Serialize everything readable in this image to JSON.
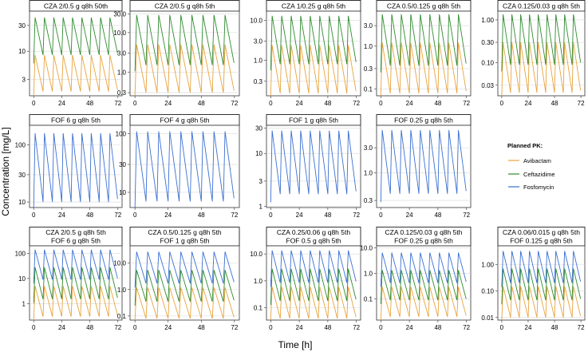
{
  "chart_data": {
    "type": "line",
    "xlabel": "Time [h]",
    "ylabel": "Concentration [mg/L]",
    "x_ticks": [
      0,
      24,
      48,
      72
    ],
    "xlim": [
      0,
      72
    ],
    "y_scale": "log10",
    "dosing_interval_h": 8,
    "colors": {
      "Avibactam": "#e8a33d",
      "Ceftazidime": "#2e8b2e",
      "Fosfomycin": "#3a6fd1"
    },
    "legend": {
      "title": "Planned PK:",
      "entries": [
        "Avibactam",
        "Ceftazidime",
        "Fosfomycin"
      ],
      "placement": "right"
    },
    "panels": [
      {
        "row": 0,
        "col": 0,
        "title": [
          "CZA 2/0.5 g q8h 50th"
        ],
        "ylim": [
          1.5,
          55
        ],
        "y_ticks": [
          3,
          10,
          30
        ],
        "y_tick_labels": [
          "3",
          "10",
          "30"
        ],
        "series": [
          {
            "name": "Avibactam",
            "peak": 8.5,
            "trough": 1.8
          },
          {
            "name": "Ceftazidime",
            "peak": 42,
            "trough": 8.5
          }
        ]
      },
      {
        "row": 0,
        "col": 1,
        "title": [
          "CZA 2/0.5 g q8h 5th"
        ],
        "ylim": [
          0.25,
          35
        ],
        "y_ticks": [
          0.3,
          1,
          3,
          10,
          30
        ],
        "y_tick_labels": [
          "0.3",
          "1.0",
          "3.0",
          "10.0",
          "30.0"
        ],
        "series": [
          {
            "name": "Avibactam",
            "peak": 5,
            "trough": 0.3
          },
          {
            "name": "Ceftazidime",
            "peak": 28,
            "trough": 1.5
          }
        ]
      },
      {
        "row": 0,
        "col": 2,
        "title": [
          "CZA 1/0.25 g q8h 5th"
        ],
        "ylim": [
          0.13,
          17
        ],
        "y_ticks": [
          0.3,
          1,
          3,
          10
        ],
        "y_tick_labels": [
          "0.3",
          "1.0",
          "3.0",
          "10.0"
        ],
        "series": [
          {
            "name": "Avibactam",
            "peak": 2.4,
            "trough": 0.15
          },
          {
            "name": "Ceftazidime",
            "peak": 13,
            "trough": 0.8
          }
        ]
      },
      {
        "row": 0,
        "col": 3,
        "title": [
          "CZA 0.5/0.125 g q8h 5th"
        ],
        "ylim": [
          0.07,
          6.5
        ],
        "y_ticks": [
          0.1,
          0.3,
          1,
          3
        ],
        "y_tick_labels": [
          "0.1",
          "0.3",
          "1.0",
          "3.0"
        ],
        "series": [
          {
            "name": "Avibactam",
            "peak": 1.2,
            "trough": 0.08
          },
          {
            "name": "Ceftazidime",
            "peak": 5.5,
            "trough": 0.35
          }
        ]
      },
      {
        "row": 0,
        "col": 4,
        "title": [
          "CZA 0.125/0.03 g q8h 5th"
        ],
        "ylim": [
          0.017,
          1.6
        ],
        "y_ticks": [
          0.03,
          0.1,
          0.3,
          1
        ],
        "y_tick_labels": [
          "0.03",
          "0.10",
          "0.30",
          "1.00"
        ],
        "series": [
          {
            "name": "Avibactam",
            "peak": 0.3,
            "trough": 0.02
          },
          {
            "name": "Ceftazidime",
            "peak": 1.35,
            "trough": 0.09
          }
        ]
      },
      {
        "row": 1,
        "col": 0,
        "title": [
          "FOF 6 g q8h 5th"
        ],
        "ylim": [
          8,
          220
        ],
        "y_ticks": [
          10,
          30,
          100
        ],
        "y_tick_labels": [
          "10",
          "30",
          "100"
        ],
        "series": [
          {
            "name": "Fosfomycin",
            "peak": 160,
            "trough": 10
          }
        ]
      },
      {
        "row": 1,
        "col": 1,
        "title": [
          "FOF 4 g q8h 5th"
        ],
        "ylim": [
          5.5,
          140
        ],
        "y_ticks": [
          10,
          30,
          100
        ],
        "y_tick_labels": [
          "10",
          "30",
          "100"
        ],
        "series": [
          {
            "name": "Fosfomycin",
            "peak": 110,
            "trough": 7
          }
        ]
      },
      {
        "row": 1,
        "col": 2,
        "title": [
          "FOF 1 g q8h 5th"
        ],
        "ylim": [
          0.95,
          34
        ],
        "y_ticks": [
          1,
          3,
          10,
          30
        ],
        "y_tick_labels": [
          "1",
          "3",
          "10",
          "30"
        ],
        "series": [
          {
            "name": "Fosfomycin",
            "peak": 27,
            "trough": 1.7
          }
        ]
      },
      {
        "row": 1,
        "col": 3,
        "title": [
          "FOF 0.25 g q8h 5th"
        ],
        "ylim": [
          0.22,
          8
        ],
        "y_ticks": [
          0.3,
          1,
          3
        ],
        "y_tick_labels": [
          "0.3",
          "1.0",
          "3.0"
        ],
        "series": [
          {
            "name": "Fosfomycin",
            "peak": 6.5,
            "trough": 0.4
          }
        ]
      },
      {
        "row": 2,
        "col": 0,
        "title": [
          "CZA 2/0.5 g q8h 5th",
          "FOF 6 g q8h 5th"
        ],
        "ylim": [
          0.22,
          200
        ],
        "y_ticks": [
          1,
          10,
          100
        ],
        "y_tick_labels": [
          "1",
          "10",
          "100"
        ],
        "series": [
          {
            "name": "Avibactam",
            "peak": 5,
            "trough": 0.3
          },
          {
            "name": "Ceftazidime",
            "peak": 28,
            "trough": 1.5
          },
          {
            "name": "Fosfomycin",
            "peak": 140,
            "trough": 9
          }
        ]
      },
      {
        "row": 2,
        "col": 1,
        "title": [
          "CZA 0.5/0.125 g q8h 5th",
          "FOF 1 g q8h 5th"
        ],
        "ylim": [
          0.07,
          45
        ],
        "y_ticks": [
          0.1,
          1,
          10
        ],
        "y_tick_labels": [
          "0.1",
          "1.0",
          "10.0"
        ],
        "series": [
          {
            "name": "Avibactam",
            "peak": 1.2,
            "trough": 0.08
          },
          {
            "name": "Ceftazidime",
            "peak": 5.5,
            "trough": 0.35
          },
          {
            "name": "Fosfomycin",
            "peak": 27,
            "trough": 1.7
          }
        ]
      },
      {
        "row": 2,
        "col": 2,
        "title": [
          "CZA 0.25/0.06 g q8h 5th",
          "FOF 0.5 g q8h 5th"
        ],
        "ylim": [
          0.035,
          20
        ],
        "y_ticks": [
          0.1,
          1,
          10
        ],
        "y_tick_labels": [
          "0.1",
          "1.0",
          "10.0"
        ],
        "series": [
          {
            "name": "Avibactam",
            "peak": 0.6,
            "trough": 0.04
          },
          {
            "name": "Ceftazidime",
            "peak": 2.8,
            "trough": 0.18
          },
          {
            "name": "Fosfomycin",
            "peak": 13.5,
            "trough": 0.85
          }
        ]
      },
      {
        "row": 2,
        "col": 3,
        "title": [
          "CZA 0.125/0.03 g q8h 5th",
          "FOF 0.25 g q8h 5th"
        ],
        "ylim": [
          0.015,
          12
        ],
        "y_ticks": [
          0.1,
          1,
          10
        ],
        "y_tick_labels": [
          "0.1",
          "1.0",
          "10.0"
        ],
        "series": [
          {
            "name": "Avibactam",
            "peak": 0.3,
            "trough": 0.02
          },
          {
            "name": "Ceftazidime",
            "peak": 1.35,
            "trough": 0.09
          },
          {
            "name": "Fosfomycin",
            "peak": 6.5,
            "trough": 0.42
          }
        ]
      },
      {
        "row": 2,
        "col": 4,
        "title": [
          "CZA 0.06/0.015 g q8h 5th",
          "FOF 0.125 g q8h 5th"
        ],
        "ylim": [
          0.008,
          5
        ],
        "y_ticks": [
          0.01,
          0.1,
          1
        ],
        "y_tick_labels": [
          "0.01",
          "0.10",
          "1.00"
        ],
        "series": [
          {
            "name": "Avibactam",
            "peak": 0.15,
            "trough": 0.01
          },
          {
            "name": "Ceftazidime",
            "peak": 0.7,
            "trough": 0.045
          },
          {
            "name": "Fosfomycin",
            "peak": 3.2,
            "trough": 0.2
          }
        ]
      }
    ]
  }
}
